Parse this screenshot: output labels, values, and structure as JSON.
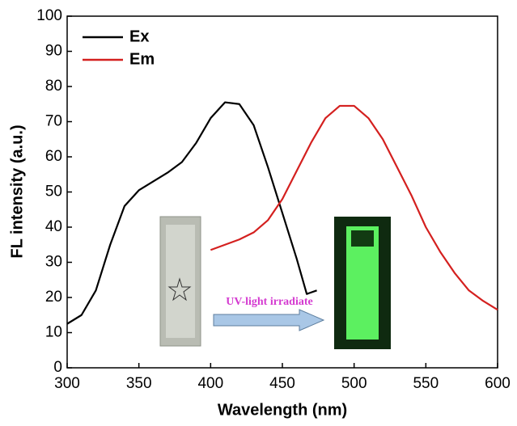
{
  "chart_data": {
    "type": "line",
    "xlabel": "Wavelength (nm)",
    "ylabel": "FL intensity (a.u.)",
    "xlim": [
      300,
      600
    ],
    "xticks": [
      300,
      350,
      400,
      450,
      500,
      550,
      600
    ],
    "ylim": [
      0,
      100
    ],
    "yticks": [
      0,
      10,
      20,
      30,
      40,
      50,
      60,
      70,
      80,
      90,
      100
    ],
    "legend": "upper left",
    "annotation": "UV-light irradiate",
    "series": [
      {
        "name": "Ex",
        "color": "#000000",
        "x": [
          300,
          310,
          320,
          330,
          340,
          350,
          360,
          370,
          380,
          390,
          400,
          410,
          420,
          430,
          440,
          450,
          460,
          467,
          474
        ],
        "values": [
          12.5,
          15,
          22,
          35,
          46,
          50.5,
          53,
          55.5,
          58.5,
          64,
          71,
          75.5,
          75,
          69,
          57,
          44,
          31,
          21,
          22
        ]
      },
      {
        "name": "Em",
        "color": "#d4201f",
        "x": [
          400,
          410,
          420,
          430,
          440,
          450,
          460,
          470,
          480,
          490,
          500,
          510,
          520,
          530,
          540,
          550,
          560,
          570,
          580,
          590,
          600
        ],
        "values": [
          33.5,
          35,
          36.5,
          38.5,
          42,
          48,
          56,
          64,
          71,
          74.5,
          74.5,
          71,
          65,
          57,
          49,
          40,
          33,
          27,
          22,
          19,
          16.5
        ]
      }
    ]
  }
}
